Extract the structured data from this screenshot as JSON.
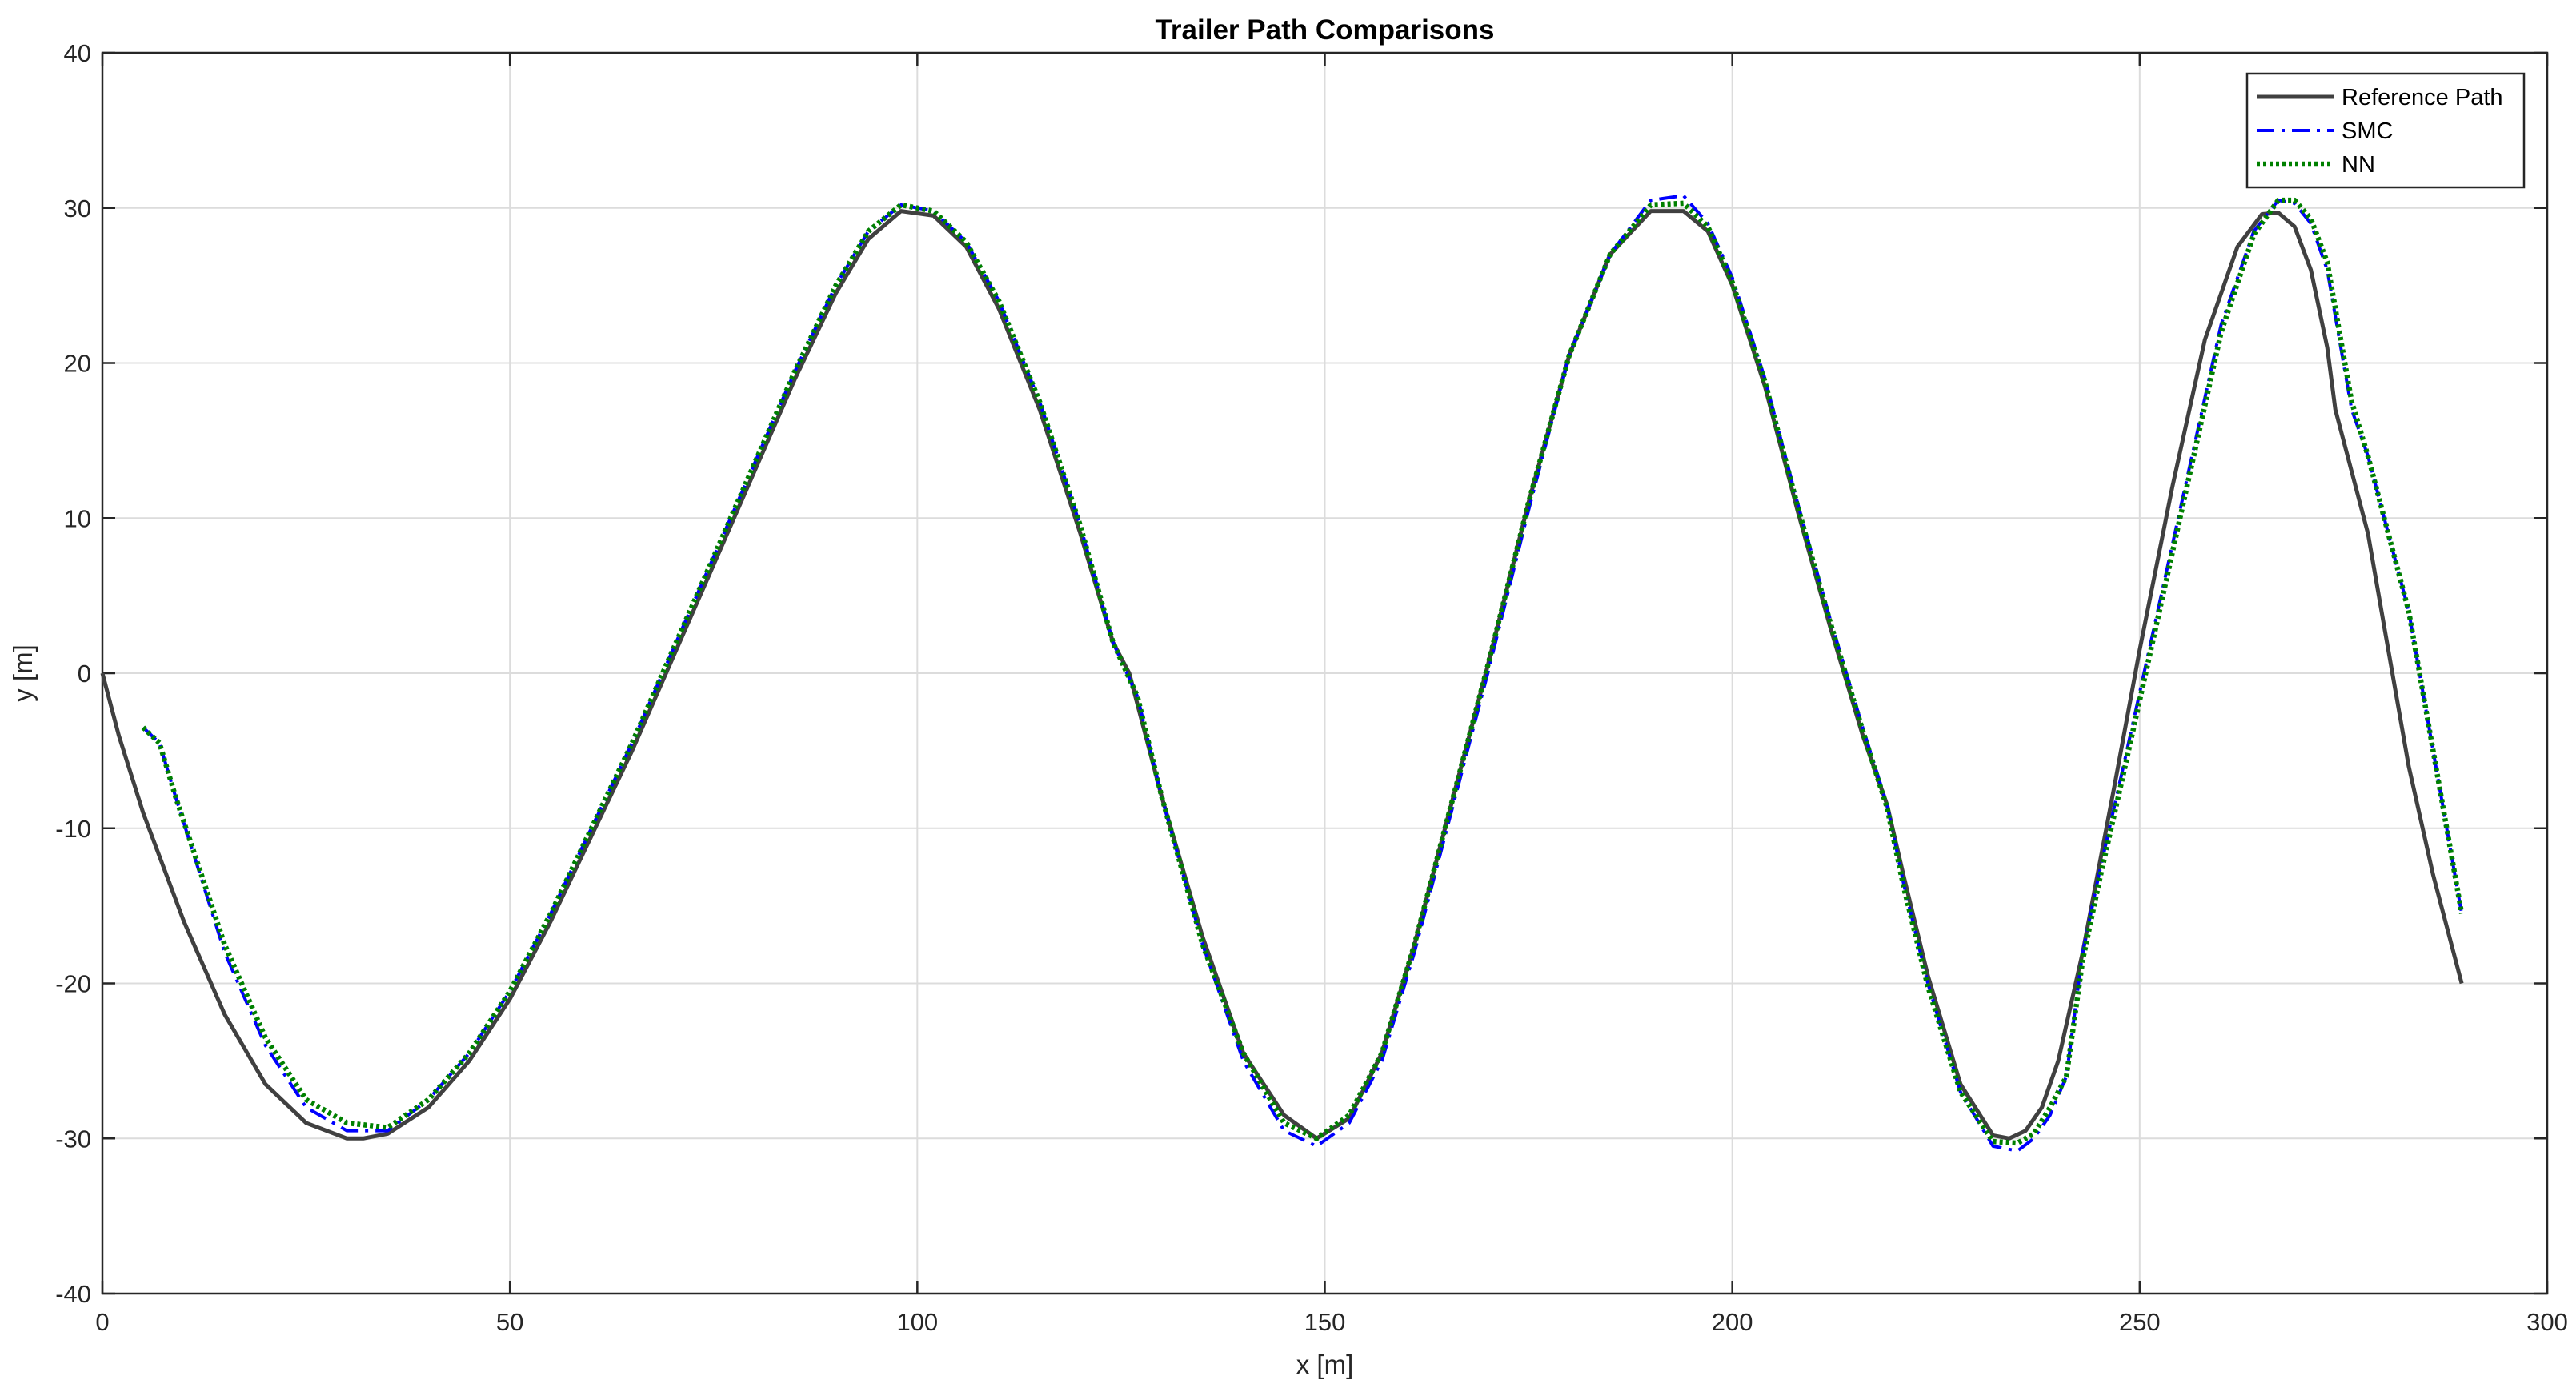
{
  "chart_data": {
    "type": "line",
    "title": "Trailer Path Comparisons",
    "xlabel": "x [m]",
    "ylabel": "y [m]",
    "xlim": [
      0,
      300
    ],
    "ylim": [
      -40,
      40
    ],
    "xticks": [
      0,
      50,
      100,
      150,
      200,
      250,
      300
    ],
    "yticks": [
      -40,
      -30,
      -20,
      -10,
      0,
      10,
      20,
      30,
      40
    ],
    "grid": true,
    "legend_position": "top-right",
    "series": [
      {
        "name": "Reference Path",
        "color": "#404040",
        "style": "solid",
        "x": [
          0,
          2,
          5,
          10,
          15,
          20,
          25,
          30,
          32,
          35,
          40,
          45,
          50,
          55,
          60,
          65,
          70,
          75,
          80,
          85,
          90,
          94,
          98,
          102,
          106,
          110,
          115,
          120,
          124,
          126,
          130,
          135,
          140,
          145,
          149,
          153,
          157,
          161,
          165,
          170,
          175,
          180,
          185,
          190,
          194,
          197,
          200,
          204,
          208,
          212,
          216,
          219,
          221,
          224,
          228,
          232,
          234,
          236,
          238,
          240,
          243,
          247,
          250,
          254,
          258,
          262,
          265,
          267,
          269,
          271,
          273,
          274,
          276,
          278,
          280,
          283,
          286,
          289.5
        ],
        "y": [
          0,
          -4,
          -9,
          -16,
          -22,
          -26.5,
          -29,
          -30,
          -30,
          -29.7,
          -28,
          -25,
          -21,
          -16,
          -10.5,
          -5,
          1,
          7,
          13,
          19,
          24.5,
          28,
          29.8,
          29.5,
          27.5,
          23.5,
          17,
          9,
          2,
          0,
          -8,
          -17,
          -24.5,
          -28.5,
          -30,
          -28.7,
          -24.5,
          -17.5,
          -9.5,
          0.5,
          11,
          20.5,
          27,
          29.8,
          29.8,
          28.5,
          25,
          18.5,
          10.5,
          3,
          -4,
          -8.5,
          -13,
          -19.5,
          -26.5,
          -29.8,
          -30,
          -29.5,
          -28,
          -25,
          -18,
          -7,
          1.5,
          12,
          21.5,
          27.5,
          29.6,
          29.7,
          28.8,
          26,
          21,
          17,
          13,
          9,
          3,
          -6,
          -13,
          -20
        ]
      },
      {
        "name": "SMC",
        "color": "#0000ff",
        "style": "dashdot",
        "x": [
          5,
          7,
          9,
          15,
          20,
          25,
          30,
          35,
          40,
          45,
          50,
          55,
          60,
          65,
          70,
          75,
          80,
          85,
          90,
          94,
          98,
          102,
          106,
          110,
          115,
          120,
          124,
          127,
          130,
          135,
          140,
          145,
          149,
          153,
          157,
          161,
          165,
          170,
          175,
          180,
          185,
          190,
          194,
          197,
          200,
          204,
          208,
          212,
          216,
          219,
          221,
          224,
          228,
          232,
          235,
          237,
          239,
          241,
          243,
          245,
          248,
          252,
          256,
          260,
          264,
          267,
          269,
          271,
          273,
          275,
          276,
          278,
          280,
          283,
          286,
          289.5
        ],
        "y": [
          -3.5,
          -4.5,
          -8,
          -18,
          -24,
          -28,
          -29.5,
          -29.5,
          -27.5,
          -24.5,
          -20.5,
          -15.5,
          -10,
          -4.5,
          1.5,
          7.5,
          13.5,
          19.5,
          25,
          28.5,
          30.2,
          29.8,
          27.8,
          24,
          17.5,
          9.5,
          2,
          -1.5,
          -8,
          -17.5,
          -25,
          -29.5,
          -30.5,
          -29,
          -25,
          -18,
          -10,
          0,
          10.5,
          20.5,
          27,
          30.5,
          30.8,
          29,
          25.5,
          19,
          11,
          3.5,
          -3.5,
          -8.5,
          -13.5,
          -20,
          -27,
          -30.5,
          -30.8,
          -30,
          -28.5,
          -26,
          -18,
          -13,
          -6,
          3.5,
          13,
          22.5,
          28.5,
          30.5,
          30.3,
          29,
          26,
          20,
          17,
          14,
          10,
          4,
          -5,
          -15.5
        ]
      },
      {
        "name": "NN",
        "color": "#008000",
        "style": "dotted",
        "x": [
          5,
          7,
          9,
          15,
          20,
          25,
          30,
          35,
          40,
          45,
          50,
          55,
          60,
          65,
          70,
          75,
          80,
          85,
          90,
          94,
          98,
          102,
          106,
          110,
          115,
          120,
          124,
          127,
          130,
          135,
          140,
          145,
          149,
          153,
          157,
          161,
          165,
          170,
          175,
          180,
          185,
          190,
          194,
          197,
          200,
          204,
          208,
          212,
          216,
          219,
          221,
          224,
          228,
          232,
          235,
          237,
          239,
          241,
          243,
          245,
          248,
          252,
          256,
          260,
          264,
          267,
          269,
          271,
          273,
          275,
          276,
          278,
          280,
          283,
          286,
          289.5
        ],
        "y": [
          -3.5,
          -4.5,
          -8,
          -17.5,
          -23.5,
          -27.5,
          -29,
          -29.3,
          -27.5,
          -24.5,
          -20.5,
          -15.5,
          -10,
          -4.5,
          1.5,
          7.5,
          13.5,
          19.5,
          25,
          28.5,
          30.2,
          29.8,
          27.8,
          24,
          17.5,
          9.5,
          2,
          -1.5,
          -8,
          -17.5,
          -24.5,
          -29,
          -30,
          -28.5,
          -24.5,
          -17.5,
          -9.5,
          0.5,
          11,
          20.5,
          27,
          30.2,
          30.3,
          28.8,
          25.2,
          18.8,
          10.8,
          3.3,
          -3.7,
          -8.7,
          -13.7,
          -20.2,
          -27,
          -30.2,
          -30.3,
          -29.7,
          -28,
          -26,
          -18.5,
          -13.5,
          -6.5,
          3,
          12.5,
          22,
          28.3,
          30.5,
          30.5,
          29.3,
          26.5,
          20.5,
          17.5,
          14,
          10,
          4,
          -5,
          -15.5
        ]
      }
    ]
  }
}
